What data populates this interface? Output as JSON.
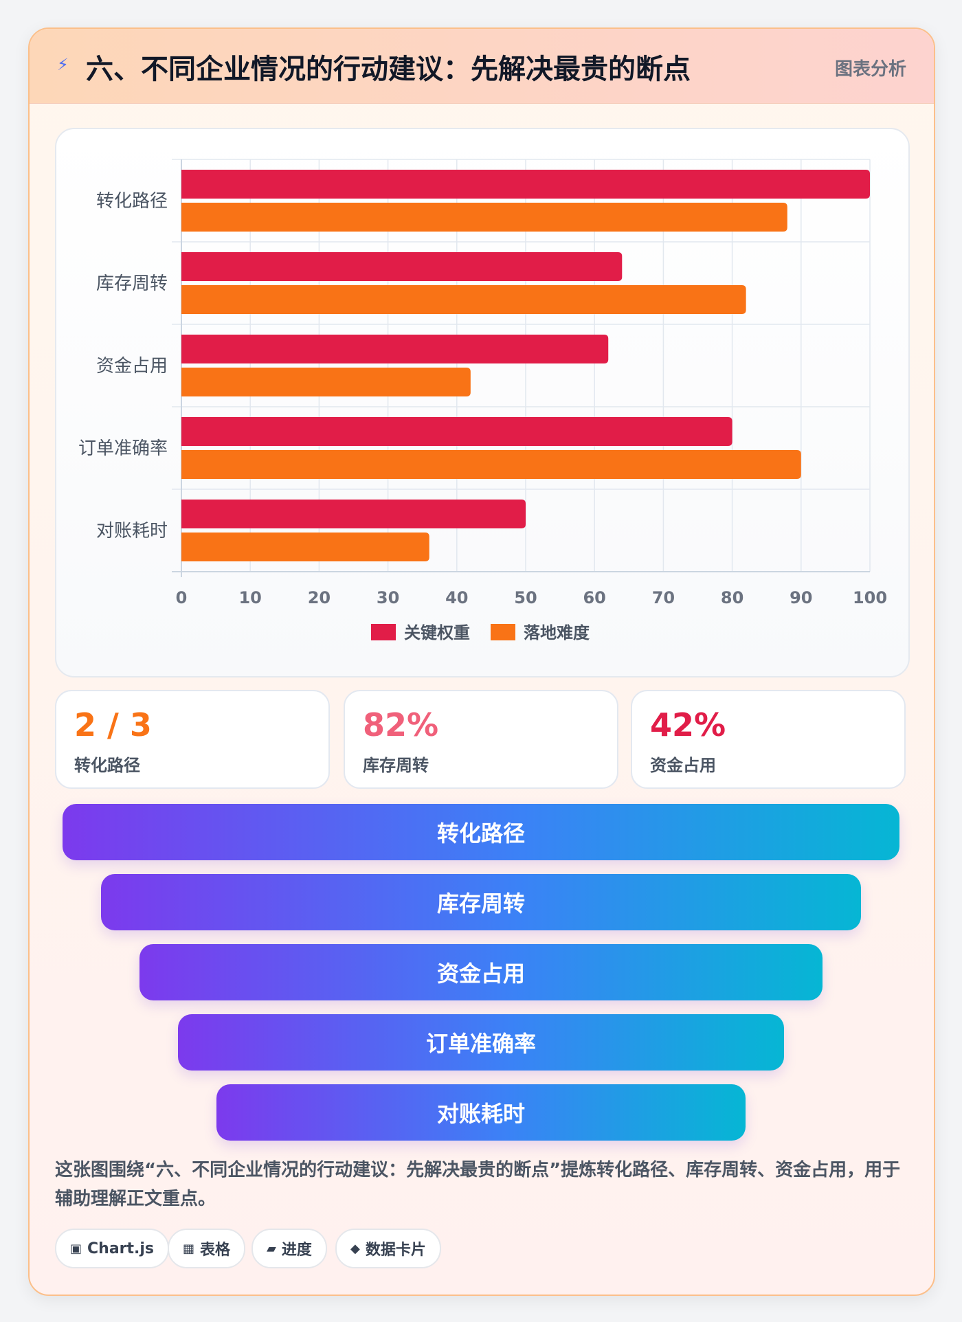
{
  "header": {
    "icon": "lightning-icon",
    "title": "六、不同企业情况的行动建议：先解决最贵的断点",
    "badge": "图表分析"
  },
  "chart_data": {
    "type": "bar",
    "orientation": "horizontal",
    "categories": [
      "转化路径",
      "库存周转",
      "资金占用",
      "订单准确率",
      "对账耗时"
    ],
    "series": [
      {
        "name": "关键权重",
        "color": "#e11d48",
        "values": [
          100,
          64,
          62,
          80,
          50
        ]
      },
      {
        "name": "落地难度",
        "color": "#f97316",
        "values": [
          88,
          82,
          42,
          90,
          36
        ]
      }
    ],
    "xlim": [
      0,
      100
    ],
    "xticks": [
      0,
      10,
      20,
      30,
      40,
      50,
      60,
      70,
      80,
      90,
      100
    ],
    "grid": true,
    "legend": "bottom"
  },
  "stats": [
    {
      "value": "2 / 3",
      "label": "转化路径",
      "color": "#f97316"
    },
    {
      "value": "82%",
      "label": "库存周转",
      "color": "#f0607a"
    },
    {
      "value": "42%",
      "label": "资金占用",
      "color": "#e11d48"
    }
  ],
  "funnel": [
    "转化路径",
    "库存周转",
    "资金占用",
    "订单准确率",
    "对账耗时"
  ],
  "description": "这张图围绕“六、不同企业情况的行动建议：先解决最贵的断点”提炼转化路径、库存周转、资金占用，用于辅助理解正文重点。",
  "tags": [
    {
      "icon": "▣",
      "label": "Chart.js"
    },
    {
      "icon": "▦",
      "label": "表格"
    },
    {
      "icon": "▰",
      "label": "进度"
    },
    {
      "icon": "◆",
      "label": "数据卡片"
    }
  ]
}
